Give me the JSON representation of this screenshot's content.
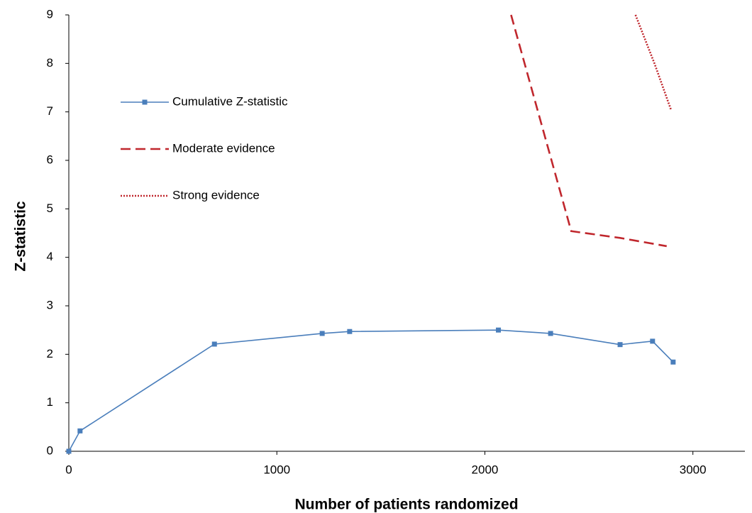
{
  "chart_data": {
    "type": "line",
    "x_label": "Number of patients randomized",
    "y_label": "Z-statistic",
    "xlim": [
      0,
      3250
    ],
    "xticks": [
      0,
      1000,
      2000,
      3000
    ],
    "ylim": [
      0,
      9
    ],
    "yticks": [
      0,
      1,
      2,
      3,
      4,
      5,
      6,
      7,
      8,
      9
    ],
    "grid": false,
    "legend": "upper left",
    "series": [
      {
        "name": "Cumulative Z-statistic",
        "color": "#4a7ebb",
        "linestyle": "solid",
        "marker": "square",
        "x": [
          0,
          54,
          700,
          1218,
          1350,
          2065,
          2316,
          2650,
          2806,
          2905
        ],
        "values": [
          0,
          0.42,
          2.21,
          2.43,
          2.47,
          2.5,
          2.43,
          2.2,
          2.27,
          1.84
        ]
      },
      {
        "name": "Moderate evidence",
        "color": "#c0272d",
        "linestyle": "dashed",
        "x": [
          2126,
          2415,
          2650,
          2874
        ],
        "values": [
          9,
          4.54,
          4.4,
          4.23
        ]
      },
      {
        "name": "Strong evidence",
        "color": "#c0272d",
        "linestyle": "dotted",
        "x": [
          2724,
          2816,
          2895
        ],
        "values": [
          9,
          7.99,
          7.04
        ]
      }
    ]
  }
}
